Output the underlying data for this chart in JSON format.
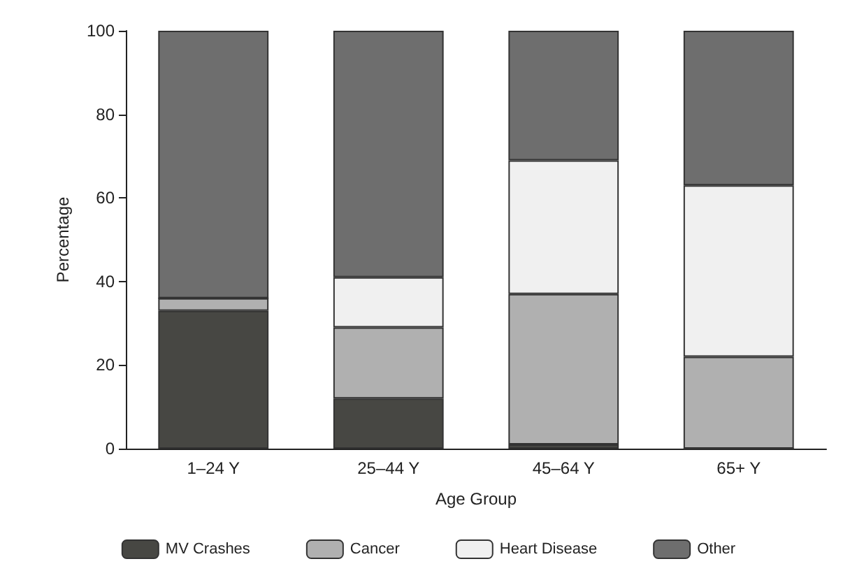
{
  "chart_data": {
    "type": "bar",
    "stacked": true,
    "xlabel": "Age Group",
    "ylabel": "Percentage",
    "categories": [
      "1–24 Y",
      "25–44 Y",
      "45–64 Y",
      "65+ Y"
    ],
    "series": [
      {
        "name": "MV Crashes",
        "color": "#474743",
        "values": [
          33,
          12,
          1,
          0
        ]
      },
      {
        "name": "Cancer",
        "color": "#b0b0b0",
        "values": [
          3,
          17,
          36,
          22
        ]
      },
      {
        "name": "Heart Disease",
        "color": "#f0f0f0",
        "values": [
          0,
          12,
          32,
          41
        ]
      },
      {
        "name": "Other",
        "color": "#6e6e6e",
        "values": [
          64,
          59,
          31,
          37
        ]
      }
    ],
    "ylim": [
      0,
      100
    ],
    "yticks": [
      0,
      20,
      40,
      60,
      80,
      100
    ],
    "grid": false,
    "legend": "bottom"
  }
}
